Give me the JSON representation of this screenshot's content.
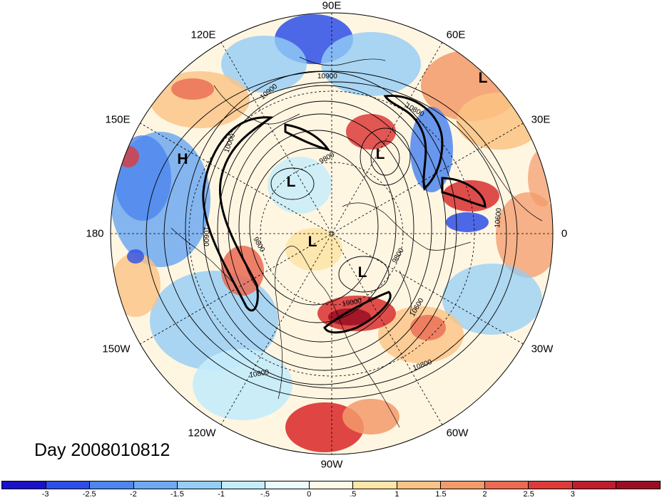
{
  "map": {
    "projection": "north polar stereographic",
    "longitude_labels": [
      "90E",
      "60E",
      "30E",
      "0",
      "30W",
      "60W",
      "90W",
      "120W",
      "150W",
      "180",
      "150E",
      "120E"
    ],
    "contour_labels": [
      "10900",
      "10900",
      "10800",
      "9800",
      "9800",
      "9800",
      "10600",
      "10600",
      "10600",
      "10800",
      "10800",
      "10000",
      "10000"
    ],
    "pressure_systems": [
      {
        "letter": "L",
        "near": "60E"
      },
      {
        "letter": "L",
        "near": "north of 60E"
      },
      {
        "letter": "L",
        "near": "east Asia / 120E"
      },
      {
        "letter": "L",
        "near": "pole / 180"
      },
      {
        "letter": "L",
        "near": "Hudson Bay / 60W"
      },
      {
        "letter": "H",
        "near": "150E"
      }
    ],
    "colors": {
      "ocean_land_base": "#ffffff",
      "coastline": "#000000",
      "grid_dash": "#000000"
    }
  },
  "day_label": "Day 2008010812",
  "colorbar": {
    "colors": [
      "#1c10c8",
      "#2e4fe6",
      "#4d86ef",
      "#6ea9f1",
      "#94cdf6",
      "#c4ecfb",
      "#ebfbfe",
      "#fffae6",
      "#fee5a8",
      "#fbc384",
      "#f39a6a",
      "#ea6a52",
      "#dc3b3a",
      "#c01d2e",
      "#9a0e22"
    ],
    "tick_labels": [
      "-3",
      "-2.5",
      "-2",
      "-1.5",
      "-1",
      "-.5",
      "0",
      ".5",
      "1",
      "1.5",
      "2",
      "2.5",
      "3"
    ]
  }
}
